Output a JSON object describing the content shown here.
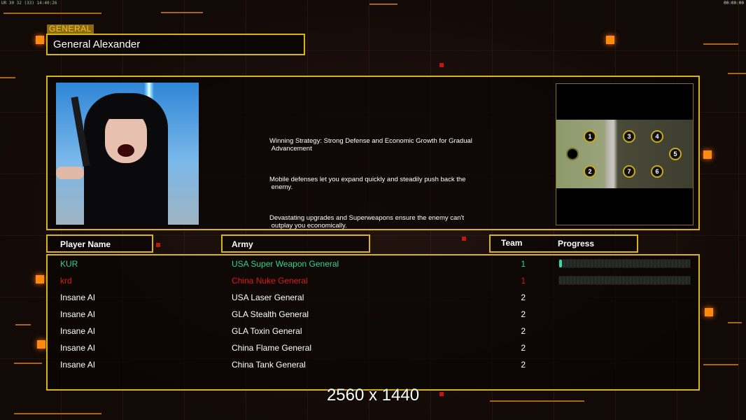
{
  "hud": {
    "left_status": "UR 30 32 (33) 14:40:26",
    "right_timer": "00:00:00"
  },
  "general": {
    "section_label": "GENERAL",
    "name": "General Alexander"
  },
  "description": {
    "paragraphs": [
      "Winning Strategy: Strong Defense and Economic Growth for Gradual\n Advancement",
      "Mobile defenses let you expand quickly and steadily push back the\n enemy.",
      "Devastating upgrades and Superweapons ensure the enemy can't\n outplay you economically."
    ]
  },
  "map": {
    "start_positions": [
      "1",
      "2",
      "3",
      "4",
      "5",
      "6",
      "7"
    ]
  },
  "table": {
    "headers": {
      "player": "Player Name",
      "army": "Army",
      "team": "Team",
      "progress": "Progress"
    },
    "rows": [
      {
        "player": "KUR",
        "army": "USA Super Weapon General",
        "team": "1",
        "color": "#2fd68f",
        "progress": 0.02
      },
      {
        "player": "krd",
        "army": "China Nuke General",
        "team": "1",
        "color": "#e01a12",
        "progress": 0
      },
      {
        "player": "Insane AI",
        "army": "USA Laser General",
        "team": "2",
        "color": "#ffffff"
      },
      {
        "player": "Insane AI",
        "army": "GLA Stealth General",
        "team": "2",
        "color": "#ffffff"
      },
      {
        "player": "Insane AI",
        "army": "GLA Toxin General",
        "team": "2",
        "color": "#ffffff"
      },
      {
        "player": "Insane AI",
        "army": "China Flame General",
        "team": "2",
        "color": "#ffffff"
      },
      {
        "player": "Insane AI",
        "army": "China Tank General",
        "team": "2",
        "color": "#ffffff"
      }
    ]
  },
  "resolution_overlay": "2560 x 1440",
  "colors": {
    "accent": "#d8b514",
    "background": "#150d09",
    "highlight": "#ff8a10"
  }
}
